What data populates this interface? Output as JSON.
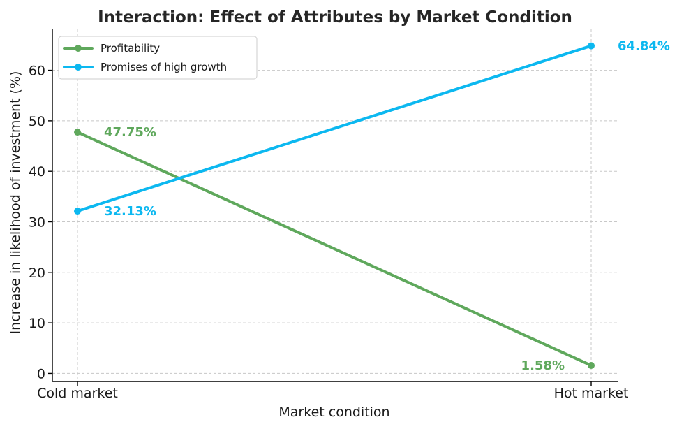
{
  "chart_data": {
    "type": "line",
    "title": "Interaction: Effect of Attributes by Market Condition",
    "xlabel": "Market condition",
    "ylabel": "Increase in likelihood of investment (%)",
    "categories": [
      "Cold market",
      "Hot market"
    ],
    "ylim": [
      -1.6,
      68.1
    ],
    "yticks": [
      0,
      10,
      20,
      30,
      40,
      50,
      60
    ],
    "grid": true,
    "legend_position": "top-left",
    "series": [
      {
        "name": "Profitability",
        "color": "#5fa85c",
        "values": [
          47.75,
          1.58
        ],
        "labels": [
          "47.75%",
          "1.58%"
        ]
      },
      {
        "name": "Promises of high growth",
        "color": "#0cb8f0",
        "values": [
          32.13,
          64.84
        ],
        "labels": [
          "32.13%",
          "64.84%"
        ]
      }
    ]
  }
}
